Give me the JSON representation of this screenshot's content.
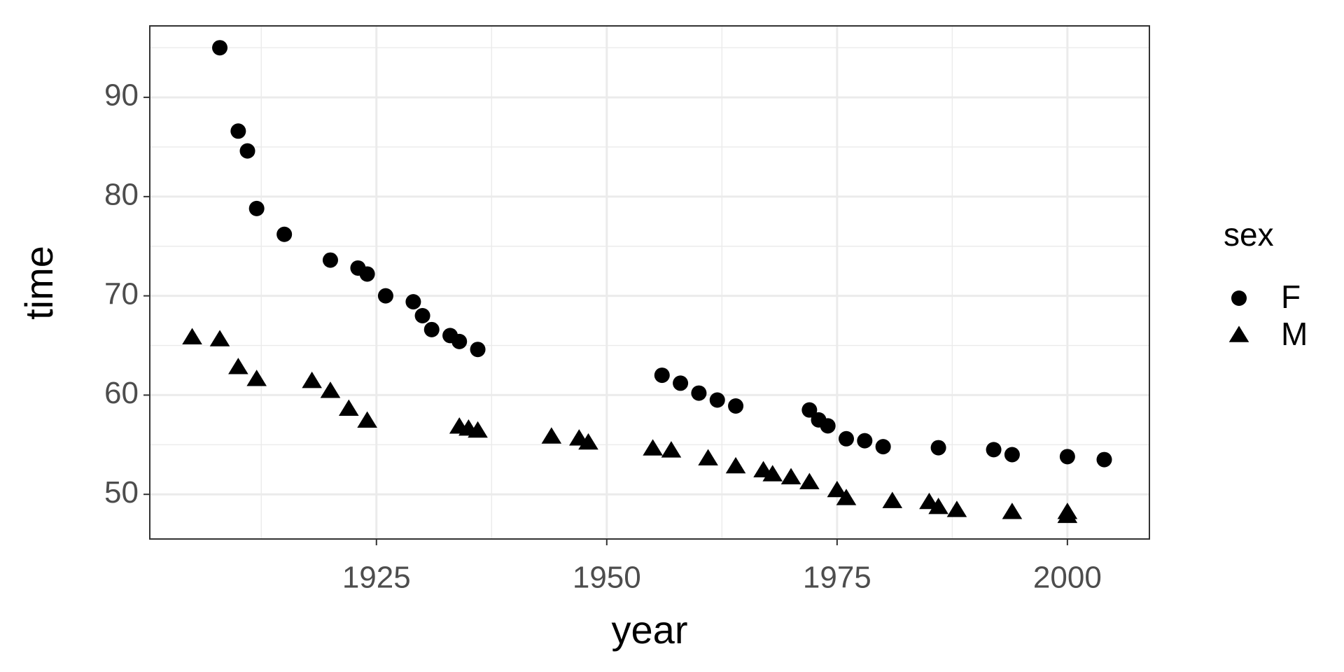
{
  "chart_data": {
    "type": "scatter",
    "x_label": "year",
    "y_label": "time",
    "legend_title": "sex",
    "xlim": [
      1900.4,
      2008.9
    ],
    "ylim": [
      45.5,
      97.2
    ],
    "xticks": [
      1925,
      1950,
      1975,
      2000
    ],
    "yticks": [
      50,
      60,
      70,
      80,
      90
    ],
    "grid": true,
    "legend": "right",
    "series": [
      {
        "name": "F",
        "color": "#000000",
        "shape": "circle",
        "x": [
          1908,
          1910,
          1911,
          1912,
          1915,
          1920,
          1923,
          1924,
          1926,
          1929,
          1930,
          1931,
          1933,
          1934,
          1936,
          1956,
          1958,
          1960,
          1962,
          1964,
          1972,
          1973,
          1974,
          1976,
          1978,
          1980,
          1986,
          1992,
          1994,
          2000,
          2004
        ],
        "values": [
          95.0,
          86.6,
          84.6,
          78.8,
          76.2,
          73.6,
          72.8,
          72.2,
          70.0,
          69.4,
          68.0,
          66.6,
          66.0,
          65.4,
          64.6,
          62.0,
          61.2,
          60.2,
          59.5,
          58.9,
          58.5,
          57.5,
          56.9,
          55.6,
          55.4,
          54.8,
          54.7,
          54.5,
          54.0,
          53.8,
          53.5
        ]
      },
      {
        "name": "M",
        "color": "#000000",
        "shape": "triangle",
        "x": [
          1905,
          1908,
          1910,
          1912,
          1918,
          1920,
          1922,
          1924,
          1934,
          1935,
          1936,
          1944,
          1947,
          1948,
          1955,
          1957,
          1961,
          1964,
          1967,
          1968,
          1970,
          1972,
          1975,
          1976,
          1981,
          1985,
          1986,
          1988,
          1994,
          2000,
          2000
        ],
        "values": [
          65.8,
          65.6,
          62.8,
          61.6,
          61.4,
          60.4,
          58.6,
          57.4,
          56.8,
          56.6,
          56.4,
          55.8,
          55.6,
          55.2,
          54.6,
          54.4,
          53.6,
          52.8,
          52.4,
          52.0,
          51.7,
          51.2,
          50.4,
          49.6,
          49.3,
          49.2,
          48.7,
          48.4,
          48.2,
          48.2,
          47.8
        ]
      }
    ]
  }
}
